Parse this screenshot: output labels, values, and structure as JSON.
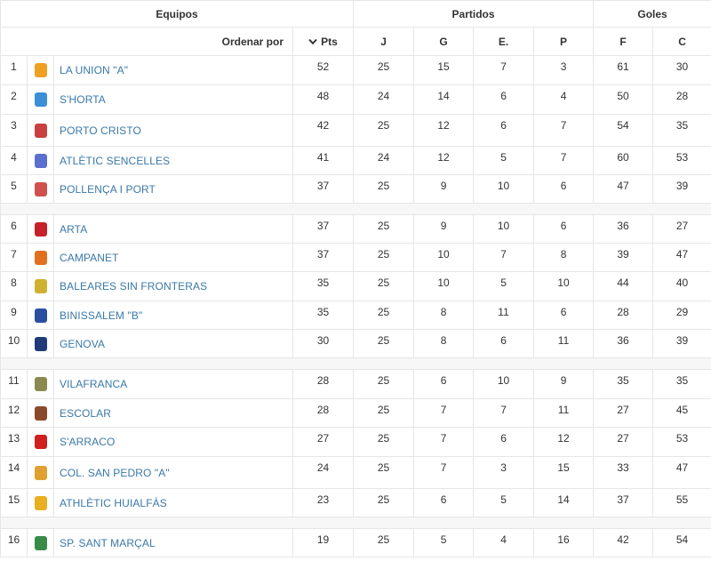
{
  "headers": {
    "equipos": "Equipos",
    "partidos": "Partidos",
    "goles": "Goles",
    "ordenar": "Ordenar por",
    "pts": "Pts",
    "j": "J",
    "g": "G",
    "e": "E.",
    "p": "P",
    "f": "F",
    "c": "C"
  },
  "teams": [
    {
      "pos": "1",
      "name": "LA UNION \"A\"",
      "pts": "52",
      "j": "25",
      "g": "15",
      "e": "7",
      "p": "3",
      "f": "61",
      "c": "30",
      "logo": "la-union-crest",
      "color": "#f0a020"
    },
    {
      "pos": "2",
      "name": "S'HORTA",
      "pts": "48",
      "j": "24",
      "g": "14",
      "e": "6",
      "p": "4",
      "f": "50",
      "c": "28",
      "logo": "shorta-crest",
      "color": "#3b8fd6"
    },
    {
      "pos": "3",
      "name": "PORTO CRISTO",
      "pts": "42",
      "j": "25",
      "g": "12",
      "e": "6",
      "p": "7",
      "f": "54",
      "c": "35",
      "logo": "porto-cristo-crest",
      "color": "#c94040"
    },
    {
      "pos": "4",
      "name": "ATLÈTIC SENCELLES",
      "pts": "41",
      "j": "24",
      "g": "12",
      "e": "5",
      "p": "7",
      "f": "60",
      "c": "53",
      "logo": "sencelles-crest",
      "color": "#5a6fd0"
    },
    {
      "pos": "5",
      "name": "POLLENÇA I PORT",
      "pts": "37",
      "j": "25",
      "g": "9",
      "e": "10",
      "p": "6",
      "f": "47",
      "c": "39",
      "logo": "pollenca-crest",
      "color": "#d05050"
    },
    {
      "pos": "6",
      "name": "ARTA",
      "pts": "37",
      "j": "25",
      "g": "9",
      "e": "10",
      "p": "6",
      "f": "36",
      "c": "27",
      "logo": "arta-crest",
      "color": "#c8202a"
    },
    {
      "pos": "7",
      "name": "CAMPANET",
      "pts": "37",
      "j": "25",
      "g": "10",
      "e": "7",
      "p": "8",
      "f": "39",
      "c": "47",
      "logo": "campanet-crest",
      "color": "#e07020"
    },
    {
      "pos": "8",
      "name": "BALEARES SIN FRONTERAS",
      "pts": "35",
      "j": "25",
      "g": "10",
      "e": "5",
      "p": "10",
      "f": "44",
      "c": "40",
      "logo": "baleares-crest",
      "color": "#d0b030"
    },
    {
      "pos": "9",
      "name": "BINISSALEM \"B\"",
      "pts": "35",
      "j": "25",
      "g": "8",
      "e": "11",
      "p": "6",
      "f": "28",
      "c": "29",
      "logo": "binissalem-crest",
      "color": "#2a4fa0"
    },
    {
      "pos": "10",
      "name": "GENOVA",
      "pts": "30",
      "j": "25",
      "g": "8",
      "e": "6",
      "p": "11",
      "f": "36",
      "c": "39",
      "logo": "genova-crest",
      "color": "#1f3a7a"
    },
    {
      "pos": "11",
      "name": "VILAFRANCA",
      "pts": "28",
      "j": "25",
      "g": "6",
      "e": "10",
      "p": "9",
      "f": "35",
      "c": "35",
      "logo": "vilafranca-crest",
      "color": "#8a8a50"
    },
    {
      "pos": "12",
      "name": "ESCOLAR",
      "pts": "28",
      "j": "25",
      "g": "7",
      "e": "7",
      "p": "11",
      "f": "27",
      "c": "45",
      "logo": "escolar-crest",
      "color": "#8a4a2a"
    },
    {
      "pos": "13",
      "name": "S'ARRACO",
      "pts": "27",
      "j": "25",
      "g": "7",
      "e": "6",
      "p": "12",
      "f": "27",
      "c": "53",
      "logo": "sarraco-crest",
      "color": "#d02020"
    },
    {
      "pos": "14",
      "name": "COL. SAN PEDRO \"A\"",
      "pts": "24",
      "j": "25",
      "g": "7",
      "e": "3",
      "p": "15",
      "f": "33",
      "c": "47",
      "logo": "san-pedro-crest",
      "color": "#e0a030"
    },
    {
      "pos": "15",
      "name": "ATHLÈTIC HUIALFÀS",
      "pts": "23",
      "j": "25",
      "g": "6",
      "e": "5",
      "p": "14",
      "f": "37",
      "c": "55",
      "logo": "huialfas-crest",
      "color": "#e8b020"
    },
    {
      "pos": "16",
      "name": "SP. SANT MARÇAL",
      "pts": "19",
      "j": "25",
      "g": "5",
      "e": "4",
      "p": "16",
      "f": "42",
      "c": "54",
      "logo": "sant-marcal-crest",
      "color": "#3a8a4a"
    }
  ]
}
